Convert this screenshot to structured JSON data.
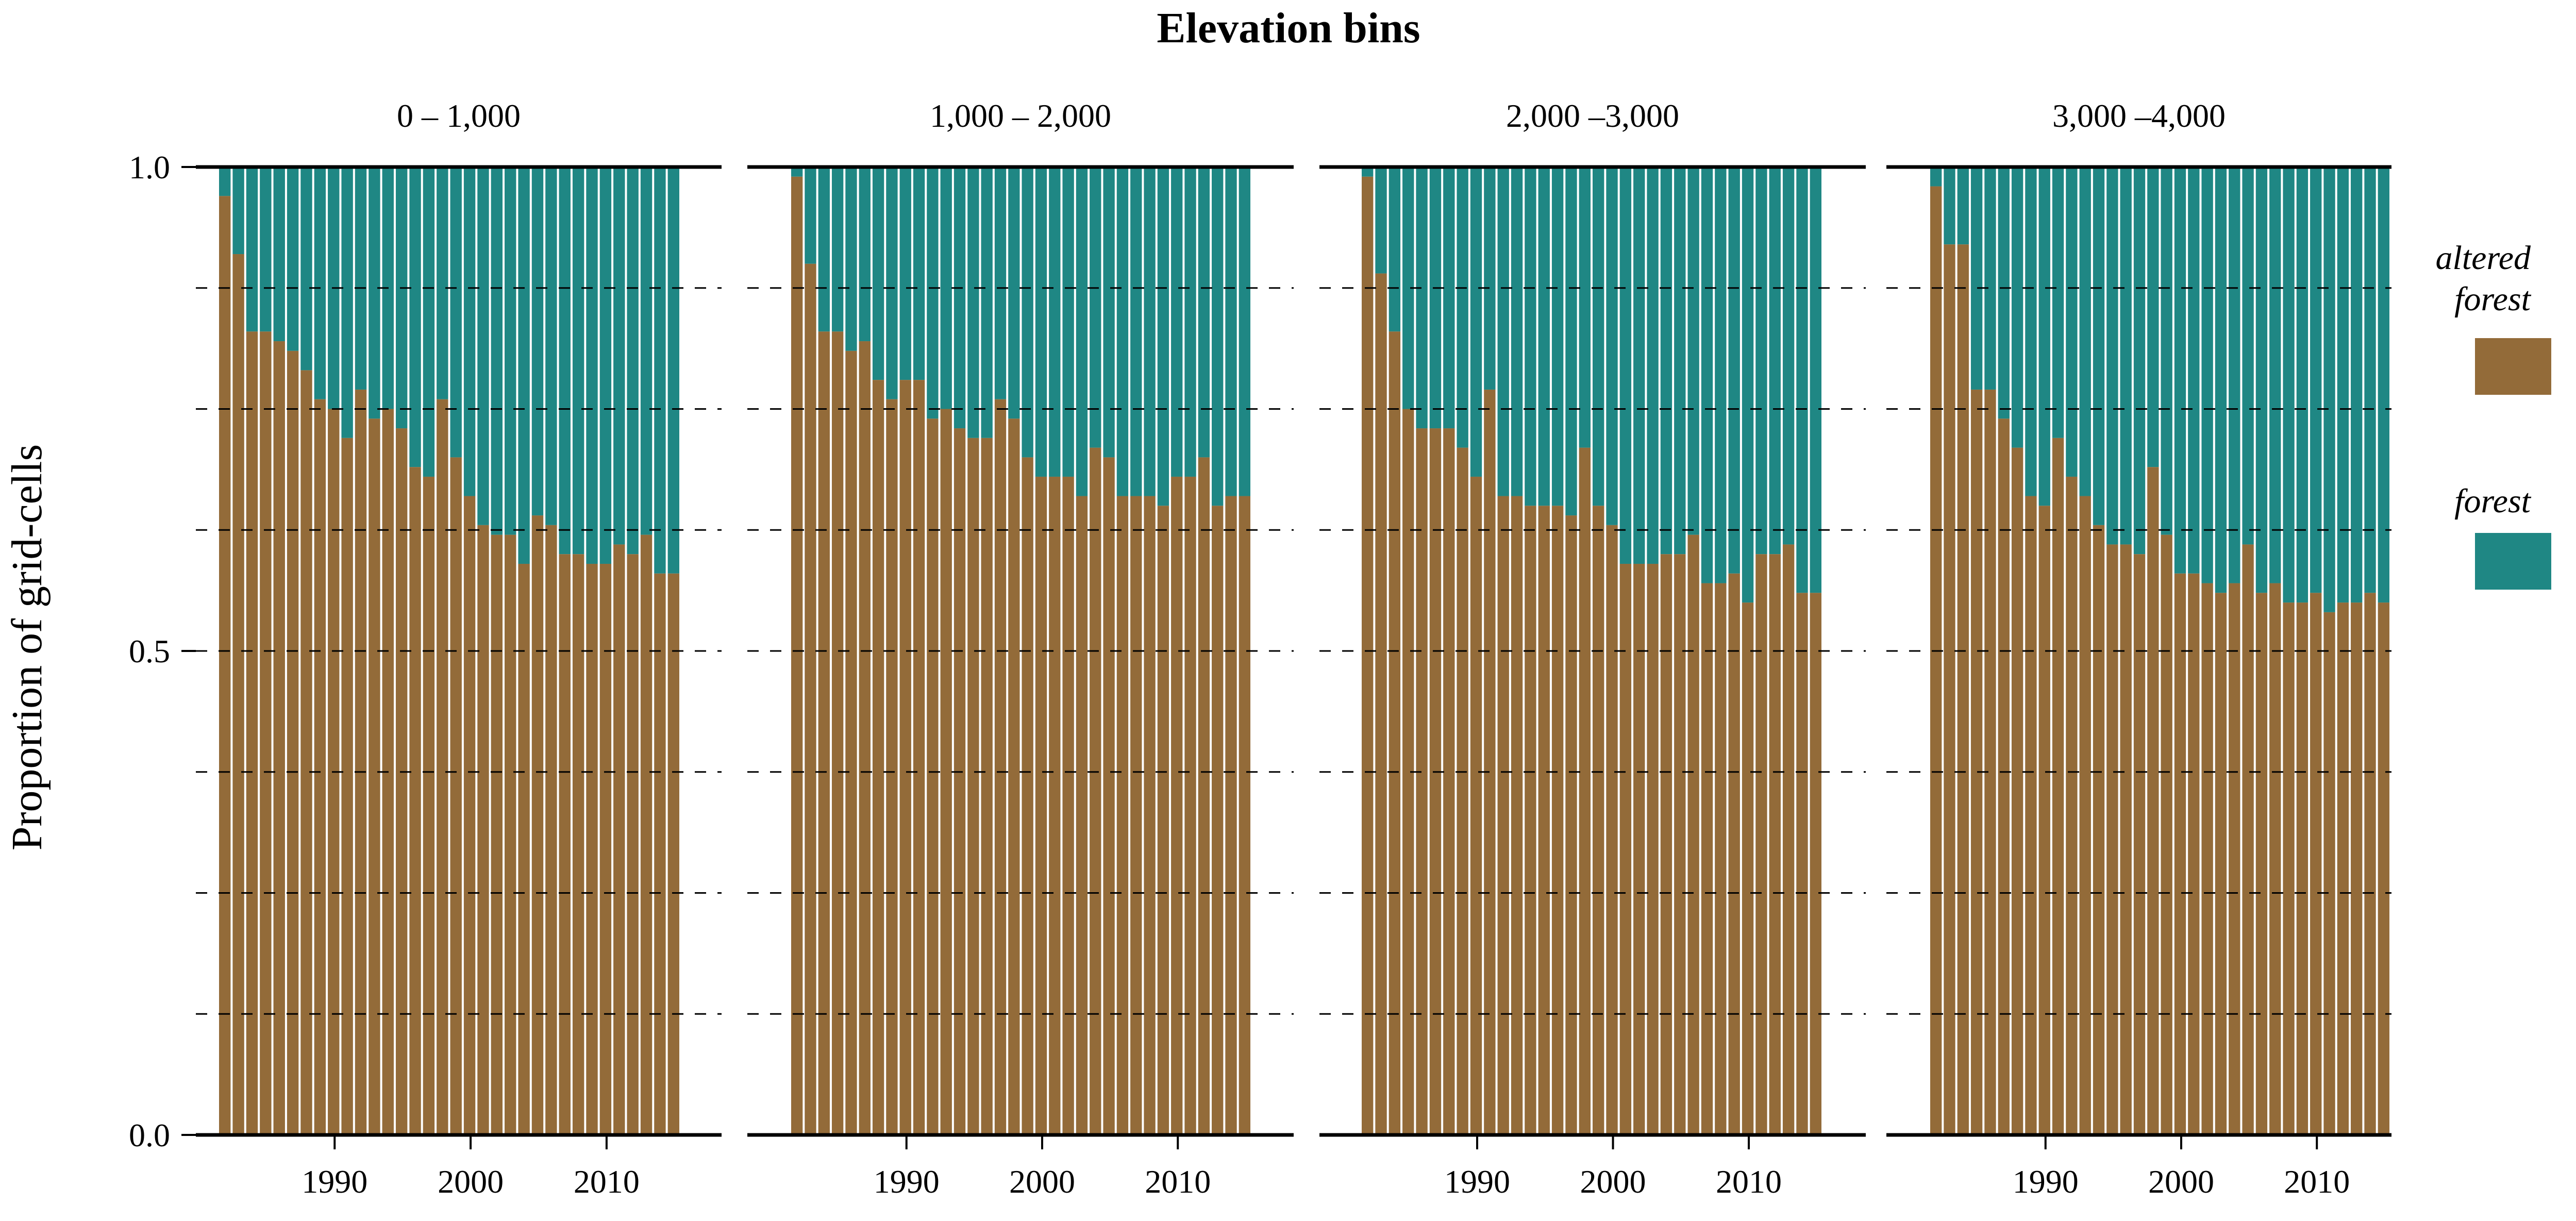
{
  "chart_data": {
    "type": "bar",
    "stacked": true,
    "facet_title": "Elevation bins",
    "ylabel": "Proportion of grid-cells",
    "ylim": [
      0,
      1
    ],
    "y_ticks": [
      "0.0",
      "0.5",
      "1.0"
    ],
    "x_ticks": [
      1990,
      2000,
      2010
    ],
    "x_tick_labels": [
      "1990",
      "2000",
      "2010"
    ],
    "years": [
      1982,
      1983,
      1984,
      1985,
      1986,
      1987,
      1988,
      1989,
      1990,
      1991,
      1992,
      1993,
      1994,
      1995,
      1996,
      1997,
      1998,
      1999,
      2000,
      2001,
      2002,
      2003,
      2004,
      2005,
      2006,
      2007,
      2008,
      2009,
      2010,
      2011,
      2012,
      2013,
      2014,
      2015
    ],
    "legend": [
      {
        "label": "altered\nforest",
        "color": "#936b39"
      },
      {
        "label": "forest",
        "color": "#1f8784"
      }
    ],
    "grid": "dashed horizontal",
    "legend_position": "right",
    "panels": [
      {
        "title": "0 – 1,000",
        "altered_forest": [
          0.97,
          0.91,
          0.83,
          0.83,
          0.82,
          0.81,
          0.79,
          0.76,
          0.75,
          0.72,
          0.77,
          0.74,
          0.75,
          0.73,
          0.69,
          0.68,
          0.76,
          0.7,
          0.66,
          0.63,
          0.62,
          0.62,
          0.59,
          0.64,
          0.63,
          0.6,
          0.6,
          0.59,
          0.59,
          0.61,
          0.6,
          0.62,
          0.58,
          0.58
        ]
      },
      {
        "title": "1,000 – 2,000",
        "altered_forest": [
          0.99,
          0.9,
          0.83,
          0.83,
          0.81,
          0.82,
          0.78,
          0.76,
          0.78,
          0.78,
          0.74,
          0.75,
          0.73,
          0.72,
          0.72,
          0.76,
          0.74,
          0.7,
          0.68,
          0.68,
          0.68,
          0.66,
          0.71,
          0.7,
          0.66,
          0.66,
          0.66,
          0.65,
          0.68,
          0.68,
          0.7,
          0.65,
          0.66,
          0.66
        ]
      },
      {
        "title": "2,000 –3,000",
        "altered_forest": [
          0.99,
          0.89,
          0.83,
          0.75,
          0.73,
          0.73,
          0.73,
          0.71,
          0.68,
          0.77,
          0.66,
          0.66,
          0.65,
          0.65,
          0.65,
          0.64,
          0.71,
          0.65,
          0.63,
          0.59,
          0.59,
          0.59,
          0.6,
          0.6,
          0.62,
          0.57,
          0.57,
          0.58,
          0.55,
          0.6,
          0.6,
          0.61,
          0.56,
          0.56
        ]
      },
      {
        "title": "3,000 –4,000",
        "altered_forest": [
          0.98,
          0.92,
          0.92,
          0.77,
          0.77,
          0.74,
          0.71,
          0.66,
          0.65,
          0.72,
          0.68,
          0.66,
          0.63,
          0.61,
          0.61,
          0.6,
          0.69,
          0.62,
          0.58,
          0.58,
          0.57,
          0.56,
          0.57,
          0.61,
          0.56,
          0.57,
          0.55,
          0.55,
          0.56,
          0.54,
          0.55,
          0.55,
          0.56,
          0.55
        ]
      }
    ]
  }
}
